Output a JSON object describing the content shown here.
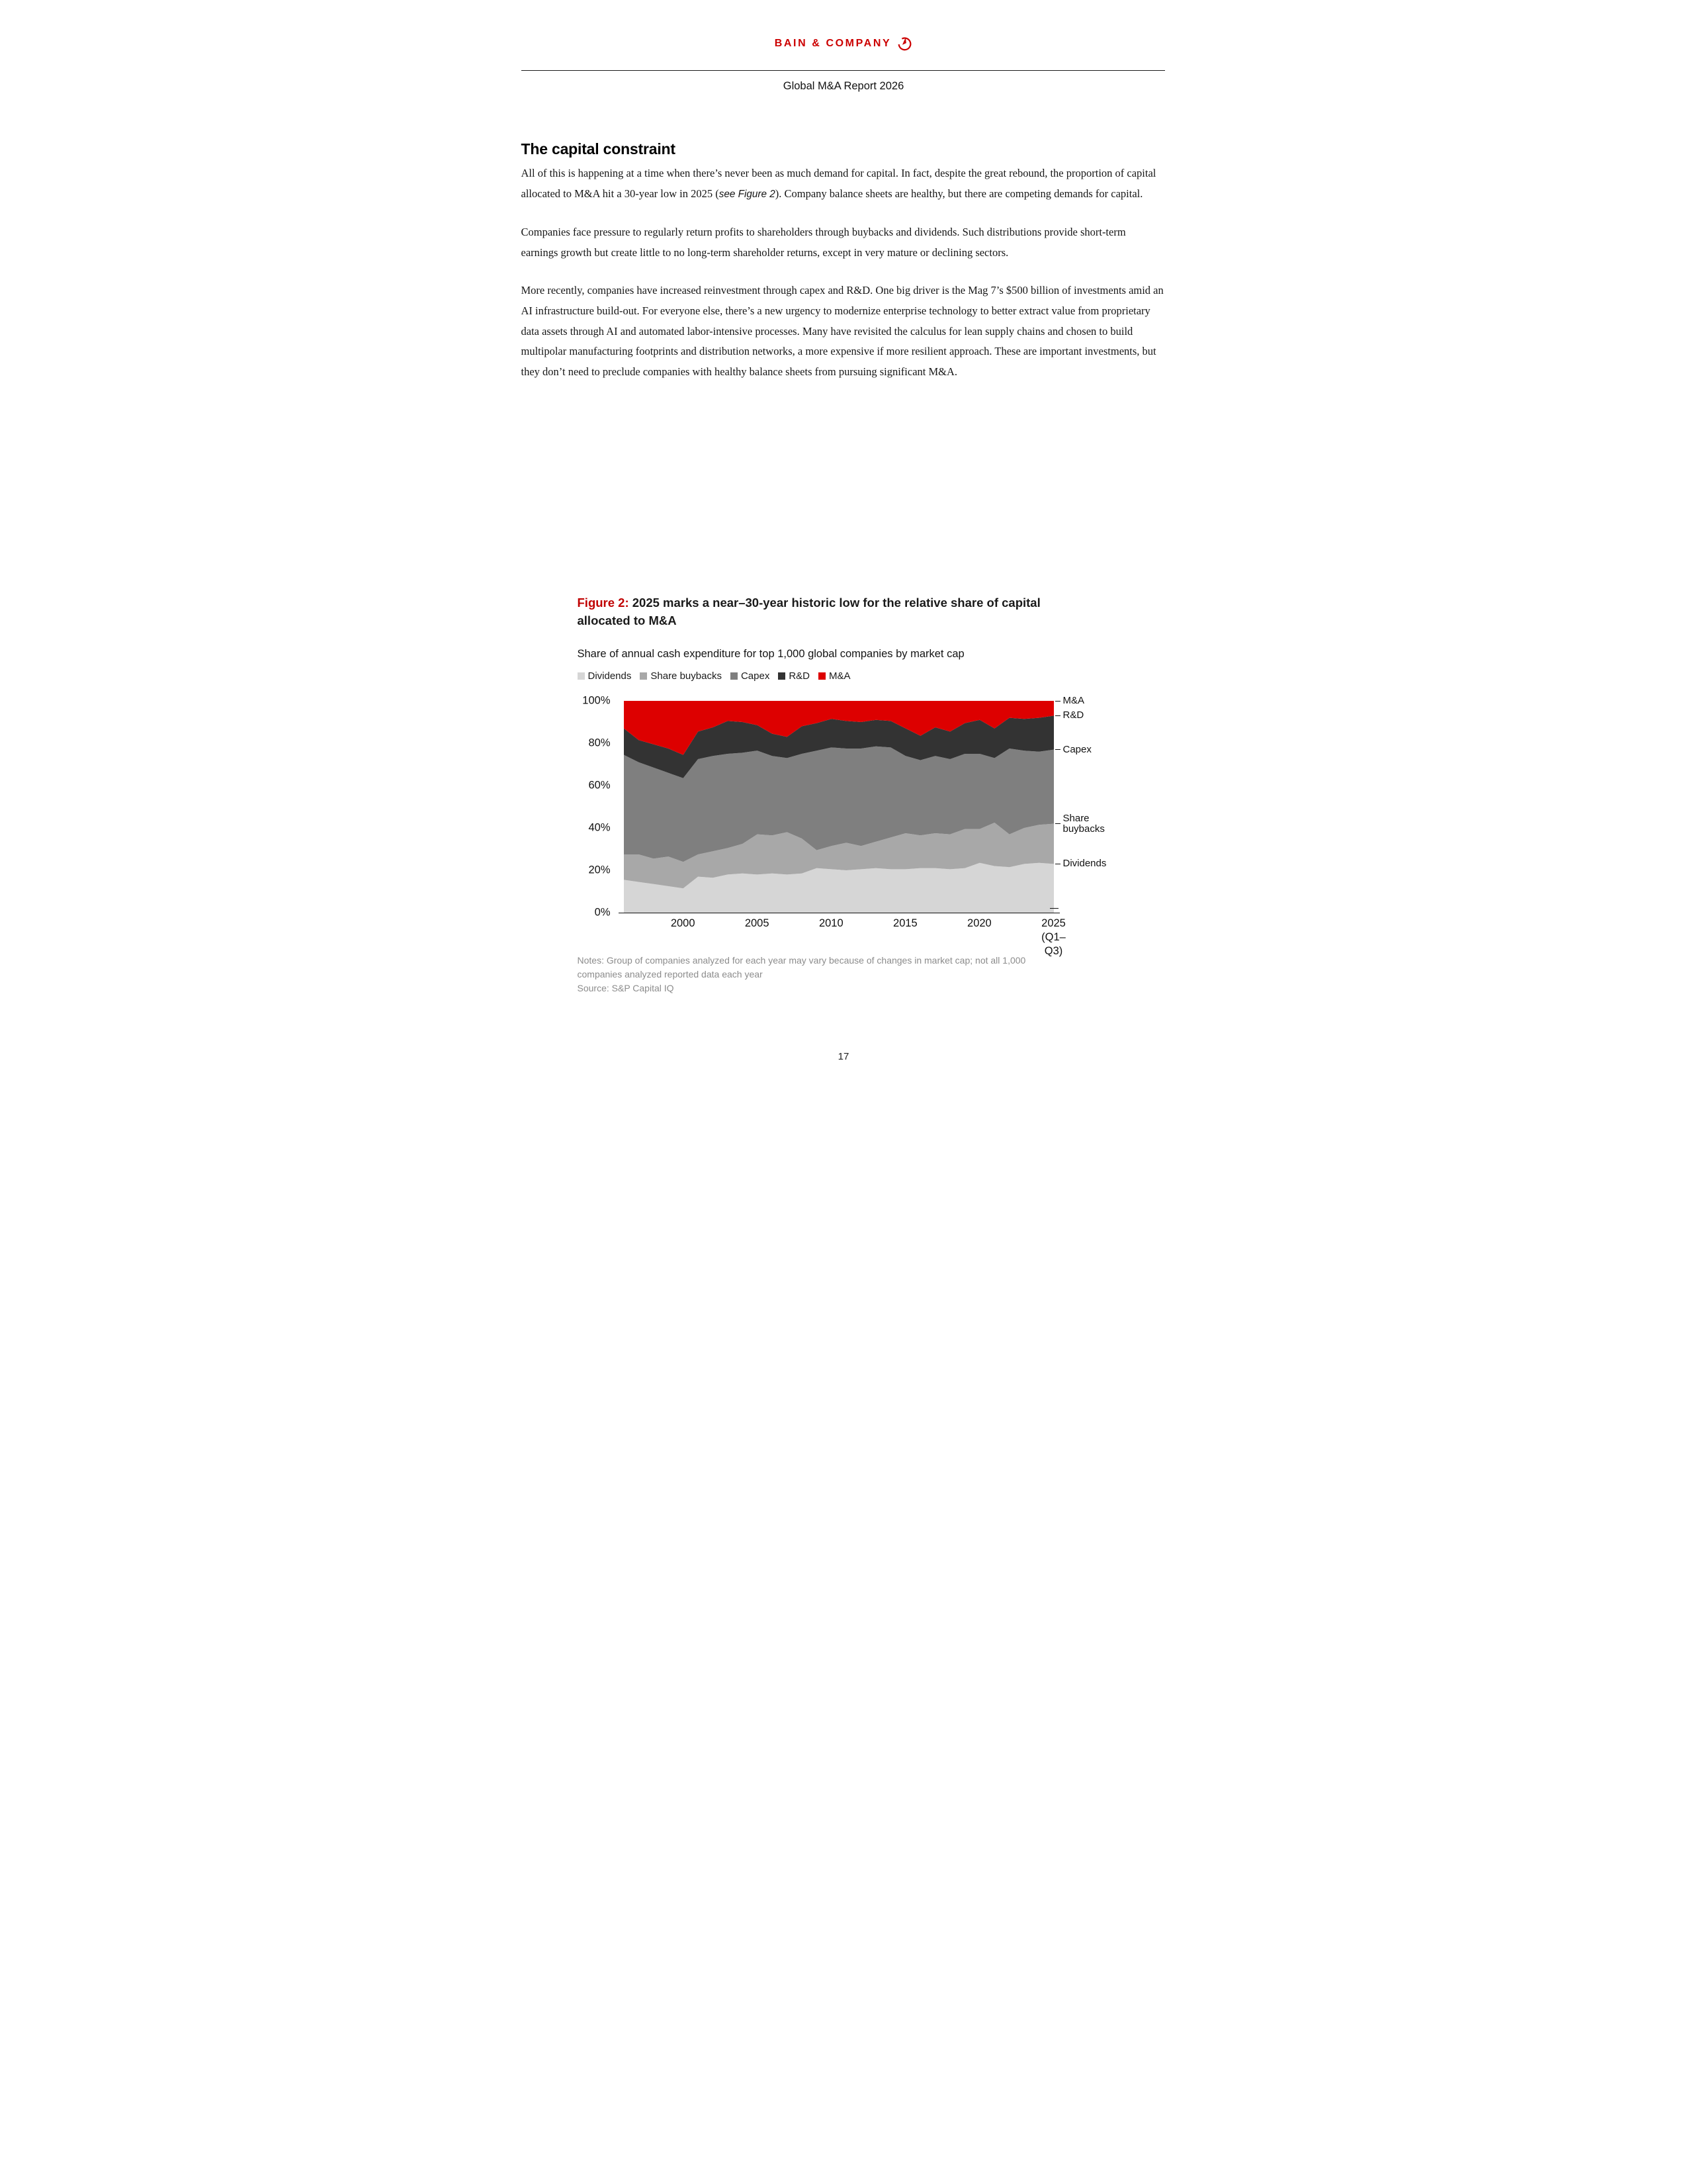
{
  "header": {
    "logo_text": "BAIN & COMPANY",
    "logo_color": "#CC0000",
    "report_title": "Global M&A Report 2026"
  },
  "article": {
    "heading": "The capital constraint",
    "paragraph1": {
      "pre": "All of this is happening at a time when there’s never been as much demand for capital. In fact, despite the great rebound, the proportion of capital allocated to M&A hit a 30-year low in 2025 (",
      "em": "see Figure 2",
      "post": "). Company balance sheets are healthy, but there are competing demands for capital."
    },
    "paragraph2": "Companies face pressure to regularly return profits to shareholders through buybacks and dividends. Such distributions provide short-term earnings growth but create little to no long-term shareholder returns, except in very mature or declining sectors.",
    "paragraph3": "More recently, companies have increased reinvestment through capex and R&D. One big driver is the Mag 7’s $500 billion of investments amid an AI infrastructure build-out. For everyone else, there’s a new urgency to modernize enterprise technology to better extract value from proprietary data assets through AI and automated labor-intensive processes. Many have revisited the calculus for lean supply chains and chosen to build multipolar manufacturing footprints and distribution networks, a more expensive if more resilient approach. These are important investments, but they don’t need to preclude companies with healthy balance sheets from pursuing significant M&A."
  },
  "figure": {
    "label": "Figure 2:",
    "title": " 2025 marks a near–30-year historic low for the relative share of capital allocated to M&A",
    "subtitle": "Share of annual cash expenditure for top 1,000 global companies by market cap",
    "notes": "Notes: Group of companies analyzed for each year may vary because of changes in market cap; not all 1,000 companies analyzed reported data each year",
    "source": "Source: S&P Capital IQ"
  },
  "chart_data": {
    "type": "area",
    "stacked_percent": true,
    "title": "Share of annual cash expenditure for top 1,000 global companies by market cap",
    "ylim": [
      0,
      100
    ],
    "grid": false,
    "legend_position": "top",
    "years": [
      1996,
      1997,
      1998,
      1999,
      2000,
      2001,
      2002,
      2003,
      2004,
      2005,
      2006,
      2007,
      2008,
      2009,
      2010,
      2011,
      2012,
      2013,
      2014,
      2015,
      2016,
      2017,
      2018,
      2019,
      2020,
      2021,
      2022,
      2023,
      2024,
      2025
    ],
    "x_ticks": [
      {
        "year": 2000,
        "label": "2000"
      },
      {
        "year": 2005,
        "label": "2005"
      },
      {
        "year": 2010,
        "label": "2010"
      },
      {
        "year": 2015,
        "label": "2015"
      },
      {
        "year": 2020,
        "label": "2020"
      },
      {
        "year": 2025,
        "label": "2025",
        "sub": "(Q1–Q3)"
      }
    ],
    "y_ticks": [
      0,
      20,
      40,
      60,
      80,
      100
    ],
    "y_tick_suffix": "%",
    "series": [
      {
        "name": "Dividends",
        "color": "#D6D6D6",
        "values": [
          15.5,
          14.5,
          13.5,
          12.5,
          11.5,
          17,
          16.5,
          18,
          18.5,
          18,
          18.5,
          18,
          18.5,
          21,
          20.5,
          20,
          20.5,
          21,
          20.5,
          20.5,
          21,
          21,
          20.5,
          21,
          23.5,
          22,
          21.5,
          23,
          23.5,
          23
        ]
      },
      {
        "name": "Share buybacks",
        "color": "#A8A8A8",
        "values": [
          12,
          13,
          12,
          14,
          12.5,
          10.5,
          12.5,
          12.5,
          14,
          19,
          18,
          20,
          16.5,
          8.5,
          11,
          13,
          11,
          12.5,
          15,
          17,
          15.5,
          16.5,
          16.5,
          18.5,
          16,
          20.5,
          15.5,
          17,
          18,
          19
        ]
      },
      {
        "name": "Capex",
        "color": "#7F7F7F",
        "values": [
          47,
          43.5,
          43,
          39.5,
          39.5,
          45,
          45,
          44.5,
          43,
          39.5,
          37.5,
          35,
          40,
          47,
          46.5,
          44.5,
          46,
          45,
          42.5,
          36.5,
          35.5,
          36.5,
          35.5,
          35.5,
          35.5,
          30.5,
          40.5,
          36.5,
          34.5,
          35
        ]
      },
      {
        "name": "R&D",
        "color": "#333333",
        "values": [
          12.5,
          10.5,
          11,
          11.5,
          11,
          13,
          13.5,
          15.5,
          14.5,
          12,
          10.5,
          10,
          13,
          13,
          13.5,
          13,
          12.5,
          12.5,
          12.5,
          13,
          11.5,
          13.5,
          13,
          14.5,
          16,
          14,
          14.5,
          15,
          16,
          16
        ]
      },
      {
        "name": "M&A",
        "color": "#DD0000",
        "values": [
          13,
          18.5,
          20.5,
          22.5,
          25.5,
          14.5,
          12.5,
          9.5,
          10,
          11.5,
          15.5,
          17,
          12,
          10.5,
          8.5,
          9.5,
          10,
          9,
          9.5,
          13,
          16.5,
          12.5,
          14.5,
          10.5,
          9,
          13,
          8,
          8.5,
          8,
          7
        ]
      }
    ]
  },
  "page": {
    "number": "17"
  }
}
